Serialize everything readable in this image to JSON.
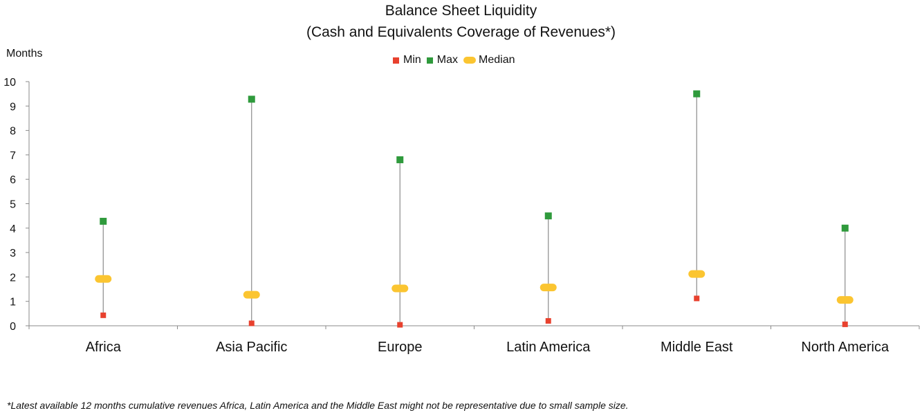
{
  "chart_data": {
    "type": "scatter",
    "title": "Balance Sheet Liquidity",
    "subtitle": "(Cash and Equivalents Coverage of Revenues*)",
    "ylabel": "Months",
    "xlabel": "",
    "ylim": [
      0,
      10
    ],
    "yticks": [
      "0",
      "1",
      "2",
      "3",
      "4",
      "5",
      "6",
      "7",
      "8",
      "9",
      "10"
    ],
    "categories": [
      "Africa",
      "Asia Pacific",
      "Europe",
      "Latin America",
      "Middle East",
      "North America"
    ],
    "series": [
      {
        "name": "Min",
        "values": [
          0.43,
          0.1,
          0.04,
          0.2,
          1.12,
          0.06
        ]
      },
      {
        "name": "Max",
        "values": [
          4.28,
          9.28,
          6.8,
          4.5,
          9.5,
          4.0
        ]
      },
      {
        "name": "Median",
        "values": [
          1.92,
          1.27,
          1.53,
          1.57,
          2.12,
          1.06
        ]
      }
    ],
    "legend_position": "top-center",
    "grid": false,
    "colors": {
      "min": "#e8412e",
      "max": "#2f9a3c",
      "median": "#fbc531",
      "range_line": "#8a8a8a",
      "axis": "#8a8a8a"
    },
    "footnote": "*Latest available 12 months cumulative revenues Africa, Latin America and the Middle East might not be representative due to small sample size."
  }
}
